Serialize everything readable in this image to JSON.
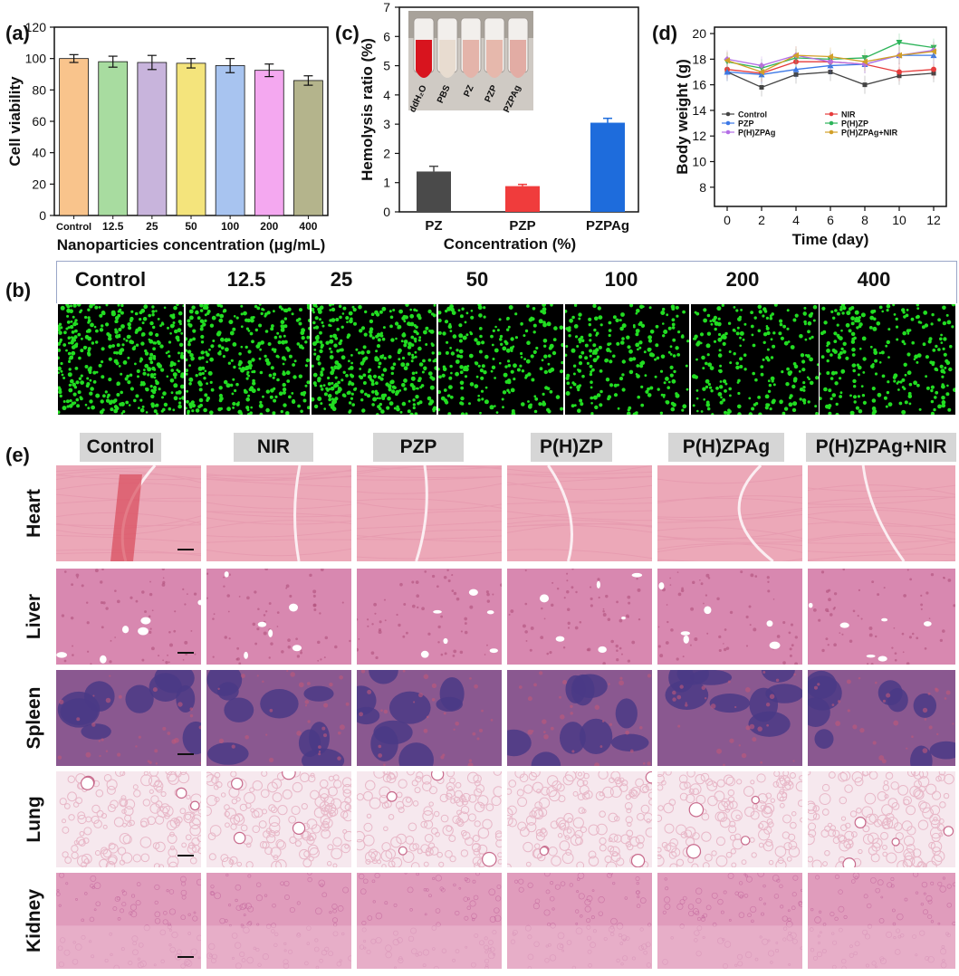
{
  "panels": {
    "a": "(a)",
    "b": "(b)",
    "c": "(c)",
    "d": "(d)",
    "e": "(e)"
  },
  "colors": {
    "bars_a": [
      "#f9c48c",
      "#a8dca0",
      "#c8b4dc",
      "#f4e47c",
      "#a8c4f0",
      "#f4a8f0",
      "#b4b48c"
    ],
    "bars_c": [
      "#4a4a4a",
      "#f03c3c",
      "#1e6cdc"
    ],
    "lines_d": [
      "#444444",
      "#e63c3c",
      "#3c78e6",
      "#2db45a",
      "#b46ee6",
      "#d2a028"
    ],
    "cell_green": "#22dd22",
    "he_pink": "#e6a8c4",
    "spleen_purple": "#6a4a8a"
  },
  "chart_data": [
    {
      "id": "a",
      "type": "bar",
      "categories": [
        "Control",
        "12.5",
        "25",
        "50",
        "100",
        "200",
        "400"
      ],
      "values": [
        100,
        98,
        97.5,
        97,
        95.5,
        92.5,
        86
      ],
      "errors": [
        2.5,
        3.5,
        4.5,
        3,
        4.5,
        4,
        3
      ],
      "xlabel": "Nanoparticies concentration (μg/mL)",
      "ylabel": "Cell viability",
      "ylim": [
        0,
        120
      ],
      "yticks": [
        "0",
        "20",
        "40",
        "60",
        "80",
        "100",
        "120"
      ]
    },
    {
      "id": "c",
      "type": "bar",
      "categories": [
        "PZ",
        "PZP",
        "PZPAg"
      ],
      "values": [
        1.38,
        0.88,
        3.05
      ],
      "errors": [
        0.18,
        0.06,
        0.15
      ],
      "xlabel": "Concentration (%)",
      "ylabel": "Hemolysis ratio (%)",
      "ylim": [
        0,
        7
      ],
      "yticks": [
        "0",
        "1",
        "2",
        "3",
        "4",
        "5",
        "6",
        "7"
      ],
      "inset_tube_labels": [
        "ddH₂O",
        "PBS",
        "PZ",
        "PZP",
        "PZPAg"
      ]
    },
    {
      "id": "d",
      "type": "line",
      "x": [
        0,
        2,
        4,
        6,
        8,
        10,
        12
      ],
      "xlabel": "Time (day)",
      "ylabel": "Body weight (g)",
      "ylim": [
        6.5,
        20.5
      ],
      "xticks": [
        "0",
        "2",
        "4",
        "6",
        "8",
        "10",
        "12"
      ],
      "yticks": [
        "8",
        "10",
        "12",
        "14",
        "16",
        "18",
        "20"
      ],
      "series": [
        {
          "name": "Control",
          "values": [
            17.0,
            15.8,
            16.8,
            17.0,
            16.0,
            16.7,
            16.9
          ]
        },
        {
          "name": "NIR",
          "values": [
            17.2,
            16.9,
            17.8,
            17.8,
            17.6,
            17.0,
            17.2
          ]
        },
        {
          "name": "PZP",
          "values": [
            17.0,
            16.8,
            17.2,
            17.5,
            17.6,
            18.3,
            18.3
          ]
        },
        {
          "name": "P(H)ZP",
          "values": [
            17.8,
            17.3,
            18.1,
            18.0,
            18.1,
            19.3,
            18.9
          ]
        },
        {
          "name": "P(H)ZPAg",
          "values": [
            18.0,
            17.5,
            18.3,
            17.8,
            17.6,
            18.3,
            18.7
          ]
        },
        {
          "name": "P(H)ZPAg+NIR",
          "values": [
            17.9,
            17.0,
            18.3,
            18.2,
            17.8,
            18.3,
            18.6
          ]
        }
      ]
    }
  ],
  "panel_b": {
    "headers": [
      "Control",
      "12.5",
      "25",
      "50",
      "100",
      "200",
      "400"
    ],
    "density": [
      0.95,
      0.75,
      0.9,
      0.55,
      0.55,
      0.55,
      0.6
    ]
  },
  "panel_e": {
    "groups": [
      "Control",
      "NIR",
      "PZP",
      "P(H)ZP",
      "P(H)ZPAg",
      "P(H)ZPAg+NIR"
    ],
    "organs": [
      "Heart",
      "Liver",
      "Spleen",
      "Lung",
      "Kidney"
    ]
  }
}
